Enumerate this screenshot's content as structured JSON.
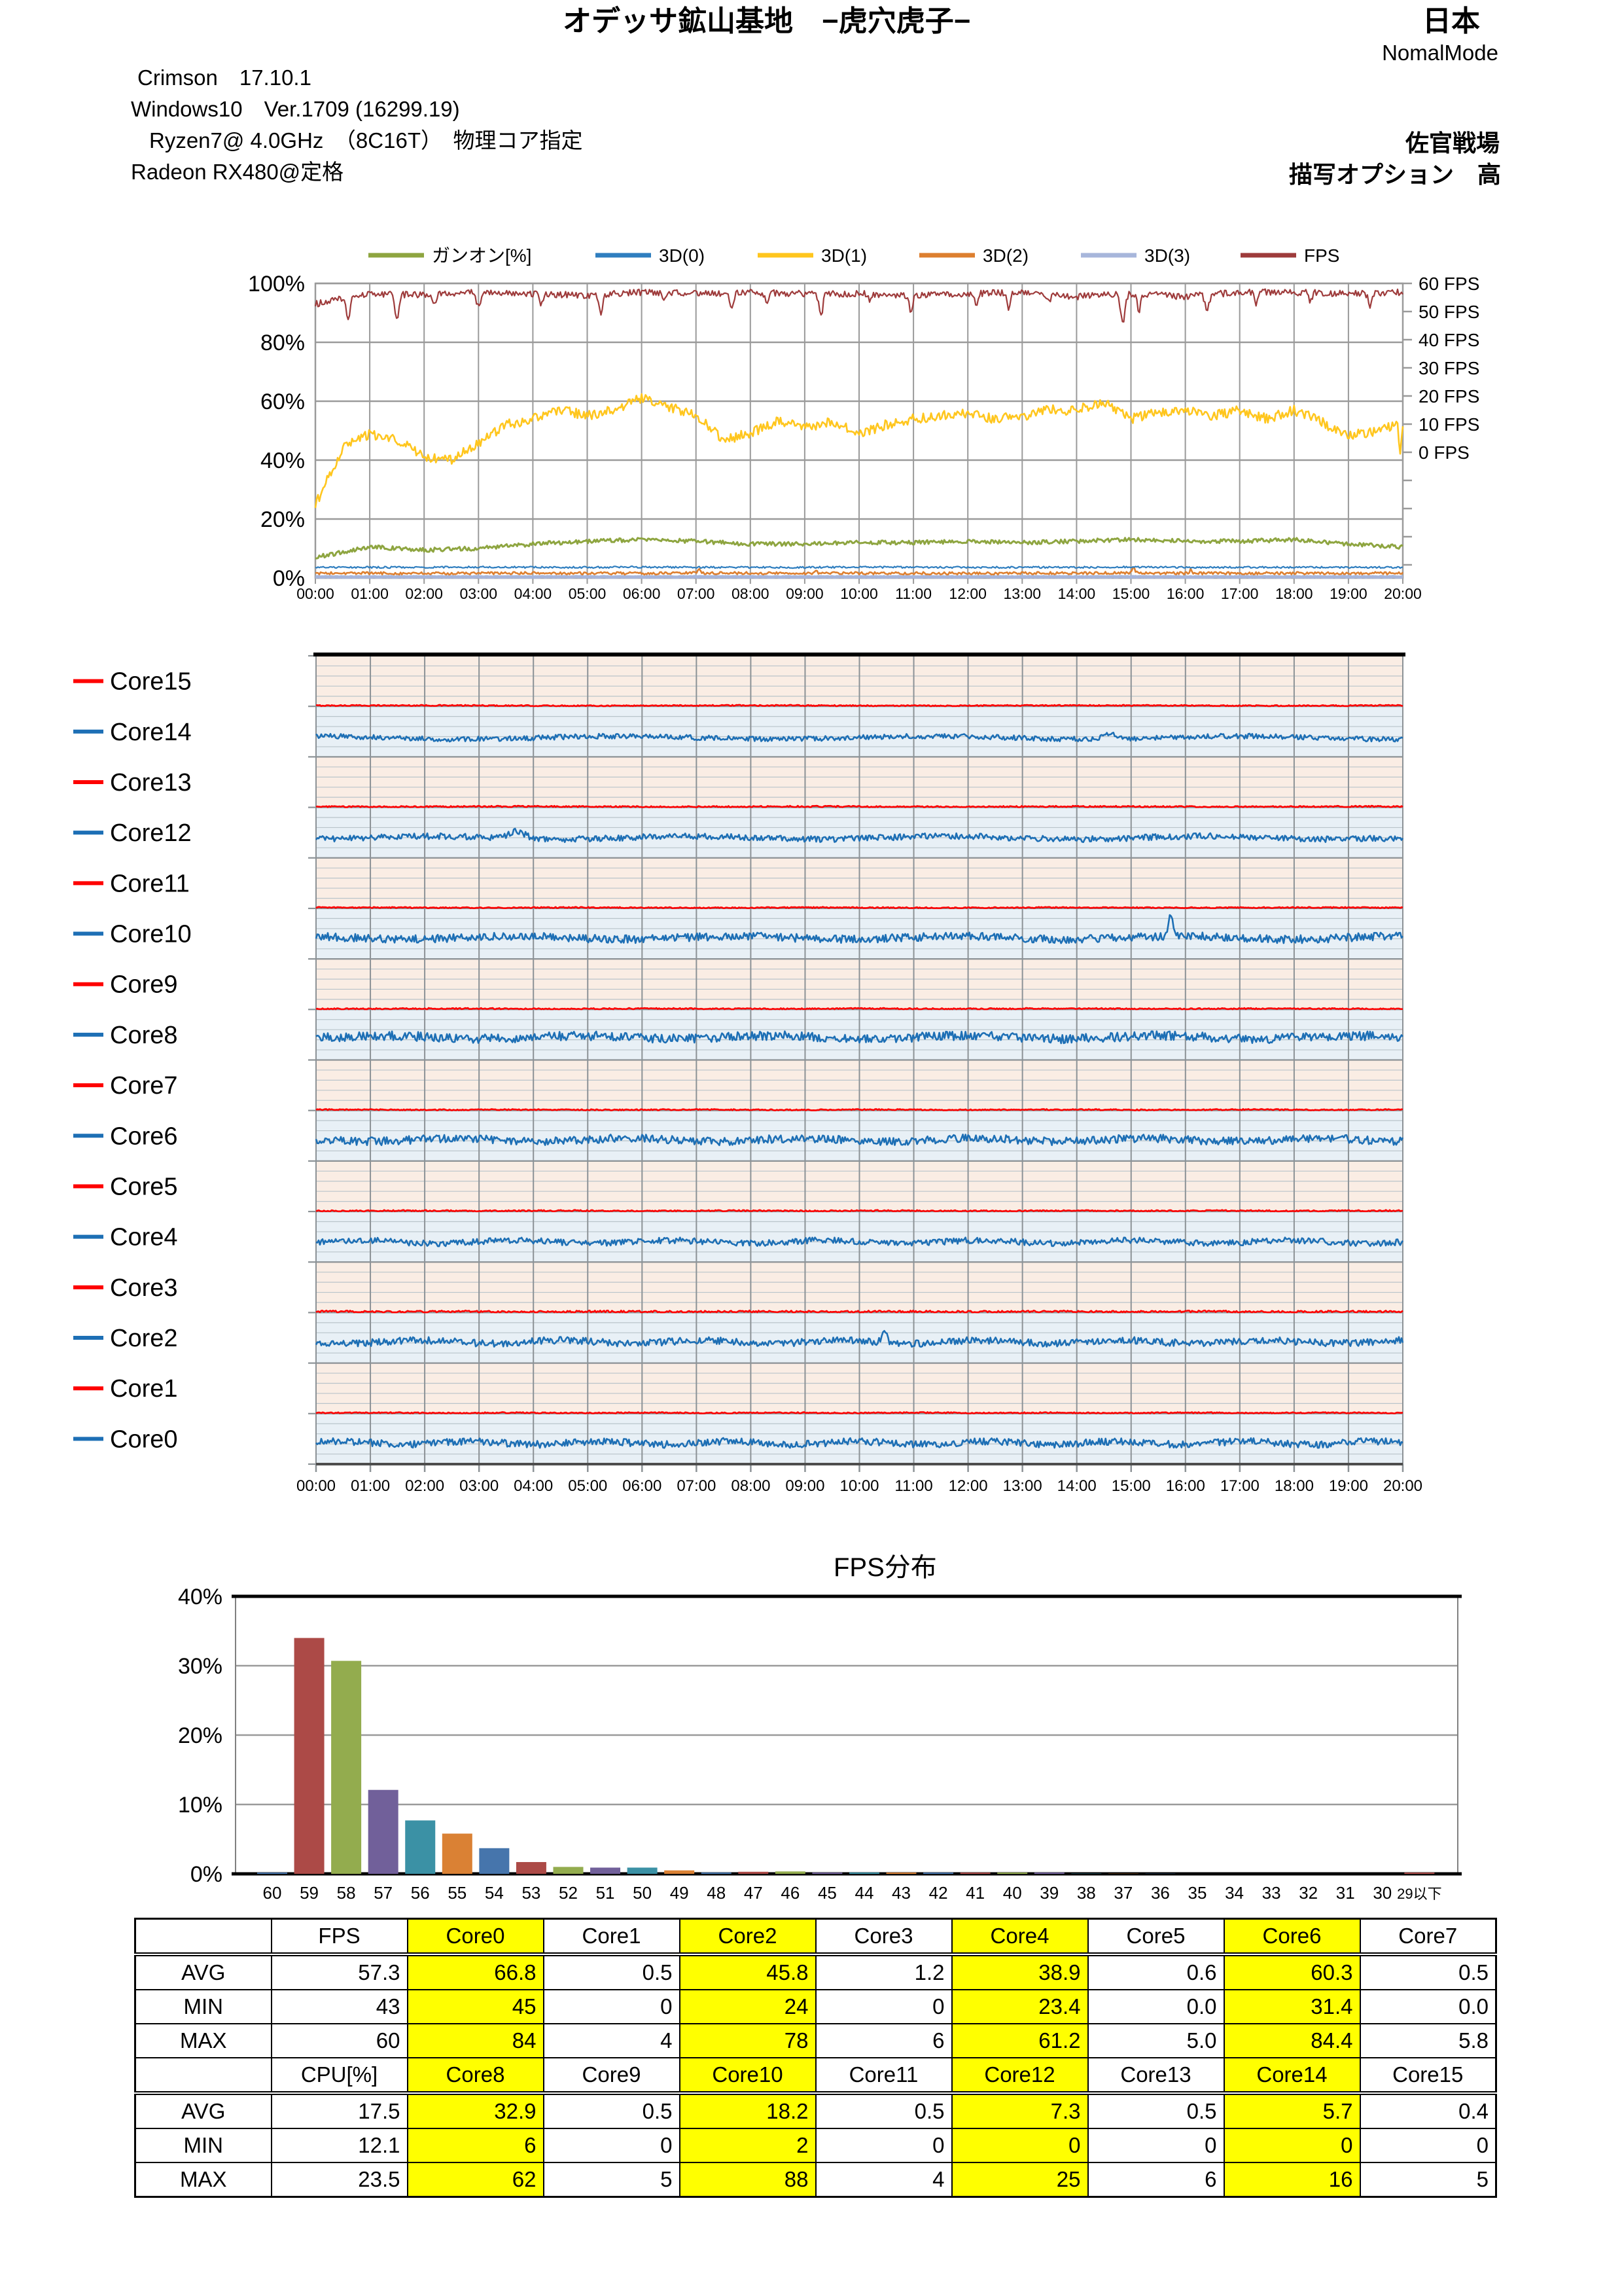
{
  "header": {
    "title": "オデッサ鉱山基地　−虎穴虎子−",
    "region": "日本",
    "mode": "NomalMode",
    "sys_line1": "Crimson　17.10.1",
    "sys_line2": "Windows10　Ver.1709 (16299.19)",
    "sys_line3": "Ryzen7@ 4.0GHz　（8C16T）　物理コア指定",
    "sys_line4": "Radeon RX480@定格",
    "battle": "佐官戦場",
    "render_option": "描写オプション　高"
  },
  "chart_data": [
    {
      "id": "usage-fps-timeline",
      "type": "line",
      "x_labels": [
        "00:00",
        "01:00",
        "02:00",
        "03:00",
        "04:00",
        "05:00",
        "06:00",
        "07:00",
        "08:00",
        "09:00",
        "10:00",
        "11:00",
        "12:00",
        "13:00",
        "14:00",
        "15:00",
        "16:00",
        "17:00",
        "18:00",
        "19:00",
        "20:00"
      ],
      "y_left_labels": [
        "100%",
        "80%",
        "60%",
        "40%",
        "20%",
        "0%"
      ],
      "y_left_range": [
        0,
        100
      ],
      "y_right_labels": [
        "60 FPS",
        "50 FPS",
        "40 FPS",
        "30 FPS",
        "20 FPS",
        "10 FPS",
        "0 FPS"
      ],
      "grid": true,
      "legend_position": "top",
      "series": [
        {
          "name": "ガンオン[%]",
          "color": "#8EA540",
          "width": 3,
          "noise": 0.7,
          "anchors": [
            7,
            10.5,
            9.5,
            10,
            11.5,
            12.5,
            13,
            12.5,
            11.5,
            11.5,
            12,
            12,
            12.5,
            12,
            12.5,
            13,
            12.5,
            12.5,
            13,
            11.5,
            10.5
          ],
          "dips": []
        },
        {
          "name": "3D(0)",
          "color": "#2F7EBF",
          "width": 2.2,
          "noise": 0.3,
          "anchors": [
            3.6,
            3.6,
            3.6,
            3.7,
            3.6,
            3.6,
            3.7,
            3.6,
            3.6,
            3.6,
            3.7,
            3.6,
            3.6,
            3.6,
            3.6,
            3.7,
            3.6,
            3.6,
            3.6,
            3.6,
            3.6
          ],
          "dips": []
        },
        {
          "name": "3D(1)",
          "color": "#FFC61E",
          "width": 2.6,
          "noise": 1.7,
          "anchors": [
            25,
            44,
            49,
            47,
            41,
            40,
            46,
            52,
            54,
            57,
            55,
            57,
            61,
            58,
            55,
            47,
            49,
            53,
            51,
            53,
            49,
            52,
            54,
            55,
            56,
            54,
            55,
            57,
            57,
            60,
            54,
            56,
            57,
            55,
            57,
            54,
            57,
            53,
            48,
            50,
            53
          ],
          "dips": [
            [
              19.95,
              -11,
              0.03
            ]
          ]
        },
        {
          "name": "3D(2)",
          "color": "#DD7F2F",
          "width": 2.6,
          "noise": 0.45,
          "anchors": [
            1.6,
            1.6,
            1.5,
            1.6,
            1.6,
            1.6,
            1.5,
            1.7,
            1.6,
            1.6,
            1.6,
            1.6,
            1.5,
            1.6,
            1.6,
            1.7,
            1.6,
            1.6,
            1.6,
            1.6,
            1.6
          ],
          "dips": [
            [
              7.05,
              1.5,
              0.03
            ],
            [
              9.2,
              1.2,
              0.03
            ],
            [
              15.05,
              2.6,
              0.03
            ],
            [
              16.1,
              1.2,
              0.03
            ]
          ]
        },
        {
          "name": "3D(3)",
          "color": "#A7B6DB",
          "width": 5,
          "noise": 0.12,
          "anchors": [
            0.35,
            0.35,
            0.35,
            0.35,
            0.35,
            0.35,
            0.35,
            0.35,
            0.35,
            0.35,
            0.35,
            0.35,
            0.35,
            0.35,
            0.35,
            0.35,
            0.35,
            0.35,
            0.35,
            0.35,
            0.35
          ],
          "dips": []
        },
        {
          "name": "FPS",
          "color": "#9E3B3B",
          "width": 2.2,
          "noise": 1.1,
          "anchors": [
            93,
            96.5,
            96,
            97,
            96.5,
            96,
            97,
            96.5,
            97,
            96.5,
            96.5,
            96,
            96.5,
            97,
            95.5,
            96.5,
            95.5,
            97,
            97,
            96.5,
            97
          ],
          "dips": [
            [
              0.6,
              -7,
              0.05
            ],
            [
              1.5,
              -8,
              0.05
            ],
            [
              2.2,
              -4,
              0.04
            ],
            [
              3.0,
              -5,
              0.05
            ],
            [
              4.15,
              -4,
              0.04
            ],
            [
              5.25,
              -7,
              0.05
            ],
            [
              6.4,
              -3,
              0.04
            ],
            [
              7.65,
              -5,
              0.05
            ],
            [
              8.3,
              -4,
              0.04
            ],
            [
              9.3,
              -7,
              0.05
            ],
            [
              10.2,
              -3,
              0.04
            ],
            [
              10.95,
              -5,
              0.05
            ],
            [
              12.15,
              -4,
              0.04
            ],
            [
              12.75,
              -5,
              0.05
            ],
            [
              13.5,
              -3,
              0.04
            ],
            [
              14.85,
              -10,
              0.06
            ],
            [
              15.15,
              -6,
              0.04
            ],
            [
              16.4,
              -5,
              0.05
            ],
            [
              17.3,
              -4,
              0.04
            ],
            [
              18.3,
              -3,
              0.04
            ],
            [
              19.4,
              -4,
              0.05
            ]
          ]
        }
      ],
      "draw_order": [
        4,
        3,
        1,
        0,
        2,
        5
      ]
    },
    {
      "id": "core-usage-timeline",
      "type": "line-multiband",
      "x_labels": [
        "00:00",
        "01:00",
        "02:00",
        "03:00",
        "04:00",
        "05:00",
        "06:00",
        "07:00",
        "08:00",
        "09:00",
        "10:00",
        "11:00",
        "12:00",
        "13:00",
        "14:00",
        "15:00",
        "16:00",
        "17:00",
        "18:00",
        "19:00",
        "20:00"
      ],
      "band_colors": {
        "red_band": "#FAEDE4",
        "blue_band": "#E8F0F6"
      },
      "line_colors": {
        "red": "#FE0000",
        "blue": "#1D6FB5"
      },
      "cores": [
        {
          "name": "Core15",
          "type": "red",
          "base": 0.015,
          "noise": 0.012,
          "spikes": []
        },
        {
          "name": "Core14",
          "type": "blue",
          "base": 0.38,
          "noise": 0.05,
          "spikes": [
            [
              0.73,
              0.12,
              0.008
            ]
          ]
        },
        {
          "name": "Core13",
          "type": "red",
          "base": 0.015,
          "noise": 0.014,
          "spikes": []
        },
        {
          "name": "Core12",
          "type": "blue",
          "base": 0.4,
          "noise": 0.06,
          "spikes": [
            [
              0.185,
              0.14,
              0.01
            ]
          ]
        },
        {
          "name": "Core11",
          "type": "red",
          "base": 0.015,
          "noise": 0.012,
          "spikes": []
        },
        {
          "name": "Core10",
          "type": "blue",
          "base": 0.42,
          "noise": 0.08,
          "spikes": [
            [
              0.786,
              0.4,
              0.003
            ]
          ]
        },
        {
          "name": "Core9",
          "type": "red",
          "base": 0.015,
          "noise": 0.013,
          "spikes": []
        },
        {
          "name": "Core8",
          "type": "blue",
          "base": 0.45,
          "noise": 0.09,
          "spikes": []
        },
        {
          "name": "Core7",
          "type": "red",
          "base": 0.015,
          "noise": 0.012,
          "spikes": []
        },
        {
          "name": "Core6",
          "type": "blue",
          "base": 0.42,
          "noise": 0.08,
          "spikes": []
        },
        {
          "name": "Core5",
          "type": "red",
          "base": 0.015,
          "noise": 0.013,
          "spikes": []
        },
        {
          "name": "Core4",
          "type": "blue",
          "base": 0.4,
          "noise": 0.06,
          "spikes": []
        },
        {
          "name": "Core3",
          "type": "red",
          "base": 0.018,
          "noise": 0.02,
          "spikes": []
        },
        {
          "name": "Core2",
          "type": "blue",
          "base": 0.42,
          "noise": 0.07,
          "spikes": [
            [
              0.523,
              0.26,
              0.003
            ]
          ]
        },
        {
          "name": "Core1",
          "type": "red",
          "base": 0.015,
          "noise": 0.012,
          "spikes": []
        },
        {
          "name": "Core0",
          "type": "blue",
          "base": 0.42,
          "noise": 0.07,
          "spikes": []
        }
      ]
    },
    {
      "id": "fps-distribution",
      "type": "bar",
      "title": "FPS分布",
      "categories": [
        "60",
        "59",
        "58",
        "57",
        "56",
        "55",
        "54",
        "53",
        "52",
        "51",
        "50",
        "49",
        "48",
        "47",
        "46",
        "45",
        "44",
        "43",
        "42",
        "41",
        "40",
        "39",
        "38",
        "37",
        "36",
        "35",
        "34",
        "33",
        "32",
        "31",
        "30",
        "29以下"
      ],
      "values": [
        0.15,
        34.0,
        30.7,
        12.1,
        7.7,
        5.8,
        3.7,
        1.7,
        1.0,
        0.9,
        0.9,
        0.5,
        0.2,
        0.3,
        0.35,
        0.15,
        0.2,
        0.15,
        0.08,
        0.06,
        0.1,
        0.05,
        0.04,
        0.03,
        0.03,
        0.02,
        0.02,
        0.02,
        0.02,
        0.02,
        0.02,
        0.06
      ],
      "palette": [
        "#4675AC",
        "#AC4A47",
        "#93AC4E",
        "#71609A",
        "#3B91A5",
        "#DA8134"
      ],
      "y_labels": [
        "40%",
        "30%",
        "20%",
        "10%",
        "0%"
      ],
      "ylim": [
        0,
        40
      ],
      "grid": true
    },
    {
      "id": "core-stats-table",
      "type": "table",
      "highlight_color": "#FFFF00",
      "groups": [
        {
          "header": [
            "",
            "FPS",
            "Core0",
            "Core1",
            "Core2",
            "Core3",
            "Core4",
            "Core5",
            "Core6",
            "Core7"
          ],
          "highlight_cols": [
            2,
            4,
            6,
            8
          ],
          "rows": [
            [
              "AVG",
              "57.3",
              "66.8",
              "0.5",
              "45.8",
              "1.2",
              "38.9",
              "0.6",
              "60.3",
              "0.5"
            ],
            [
              "MIN",
              "43",
              "45",
              "0",
              "24",
              "0",
              "23.4",
              "0.0",
              "31.4",
              "0.0"
            ],
            [
              "MAX",
              "60",
              "84",
              "4",
              "78",
              "6",
              "61.2",
              "5.0",
              "84.4",
              "5.8"
            ]
          ]
        },
        {
          "header": [
            "",
            "CPU[%]",
            "Core8",
            "Core9",
            "Core10",
            "Core11",
            "Core12",
            "Core13",
            "Core14",
            "Core15"
          ],
          "highlight_cols": [
            2,
            4,
            6,
            8
          ],
          "rows": [
            [
              "AVG",
              "17.5",
              "32.9",
              "0.5",
              "18.2",
              "0.5",
              "7.3",
              "0.5",
              "5.7",
              "0.4"
            ],
            [
              "MIN",
              "12.1",
              "6",
              "0",
              "2",
              "0",
              "0",
              "0",
              "0",
              "0"
            ],
            [
              "MAX",
              "23.5",
              "62",
              "5",
              "88",
              "4",
              "25",
              "6",
              "16",
              "5"
            ]
          ]
        }
      ]
    }
  ]
}
